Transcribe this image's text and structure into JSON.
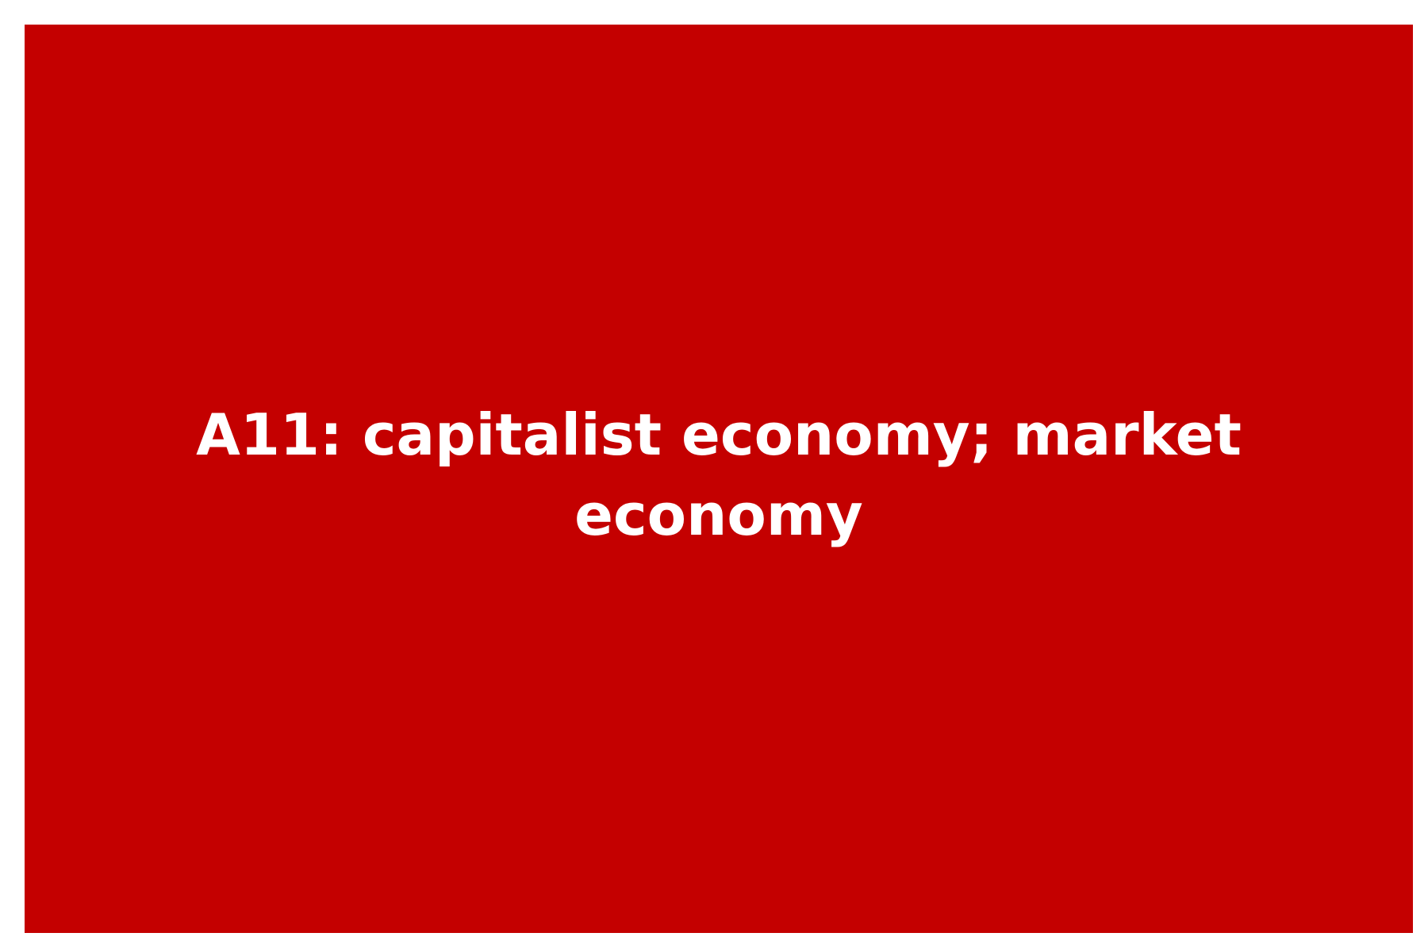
{
  "card": {
    "text": "A11: capitalist economy; market economy",
    "background_color": "#c40000",
    "text_color": "#ffffff",
    "page_color": "#ffffff"
  }
}
